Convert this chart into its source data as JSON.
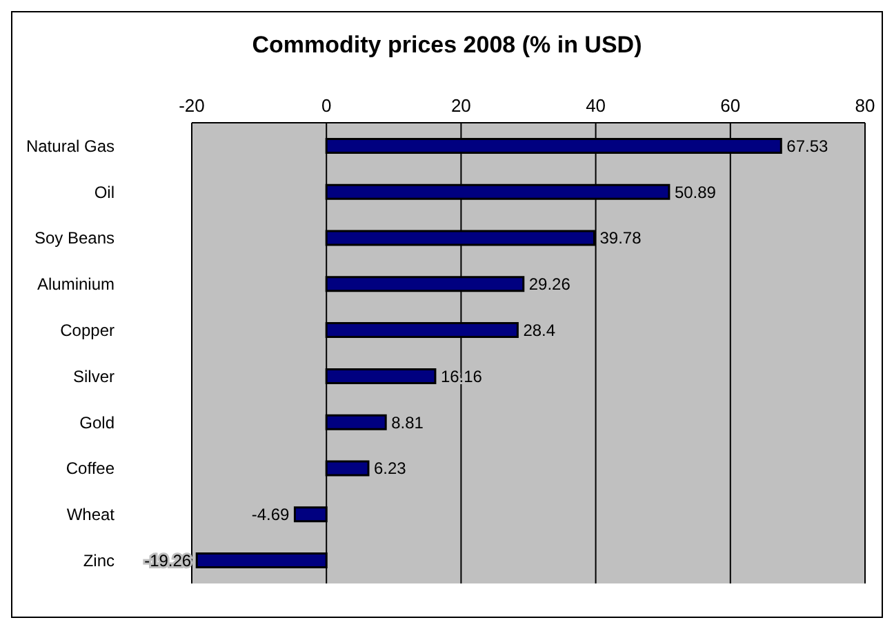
{
  "chart_data": {
    "type": "bar",
    "orientation": "horizontal",
    "title": "Commodity prices 2008 (% in USD)",
    "categories": [
      "Natural Gas",
      "Oil",
      "Soy Beans",
      "Aluminium",
      "Copper",
      "Silver",
      "Gold",
      "Coffee",
      "Wheat",
      "Zinc"
    ],
    "values": [
      67.53,
      50.89,
      39.78,
      29.26,
      28.4,
      16.16,
      8.81,
      6.23,
      -4.69,
      -19.26
    ],
    "color": "#000080",
    "xlim": [
      -20,
      80
    ],
    "xticks": [
      -20,
      0,
      20,
      40,
      60,
      80
    ],
    "grid": "x",
    "data_labels": true
  }
}
